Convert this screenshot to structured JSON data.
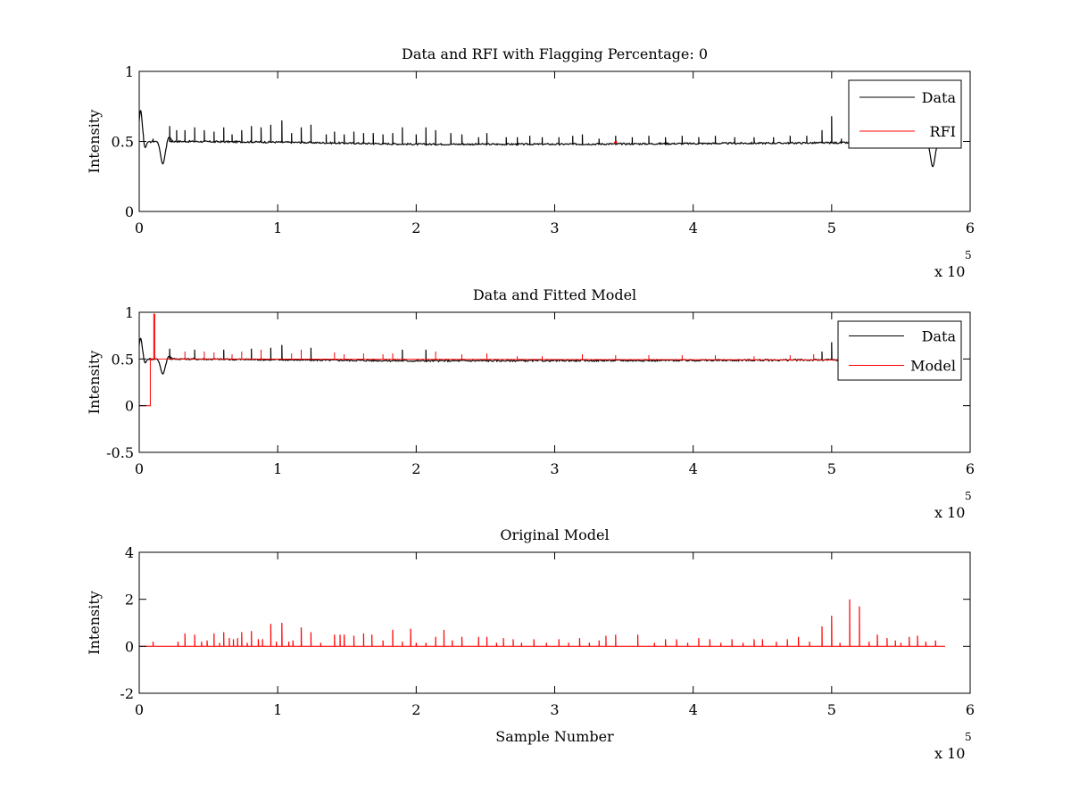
{
  "chart_data": [
    {
      "type": "line",
      "title": "Data and RFI with Flagging Percentage: 0",
      "xlabel": "",
      "ylabel": "Intensity",
      "xlim": [
        0,
        600000
      ],
      "ylim": [
        0,
        1
      ],
      "x_ticks": [
        0,
        1,
        2,
        3,
        4,
        5,
        6
      ],
      "x_tick_labels": [
        "0",
        "1",
        "2",
        "3",
        "4",
        "5",
        "6"
      ],
      "y_ticks": [
        0,
        0.5,
        1
      ],
      "y_tick_labels": [
        "0",
        "0.5",
        "1"
      ],
      "x_exponent_label": "x 10",
      "x_exponent": "5",
      "legend": {
        "placement": "top-right",
        "entries": [
          "Data",
          "RFI"
        ]
      },
      "series": [
        {
          "name": "Data",
          "color": "#000000",
          "baseline": [
            [
              0,
              0.5
            ],
            [
              5000,
              0.49
            ],
            [
              10000,
              0.5
            ],
            [
              30000,
              0.5
            ],
            [
              100000,
              0.495
            ],
            [
              200000,
              0.48
            ],
            [
              300000,
              0.48
            ],
            [
              400000,
              0.485
            ],
            [
              500000,
              0.49
            ],
            [
              560000,
              0.49
            ],
            [
              585000,
              0.49
            ]
          ],
          "dips": [
            [
              1000,
              0.72,
              2500
            ],
            [
              17000,
              0.34,
              3500
            ],
            [
              573000,
              0.32,
              3500
            ]
          ],
          "spikes": [
            [
              10000,
              0.52
            ],
            [
              22000,
              0.61
            ],
            [
              27000,
              0.58
            ],
            [
              33000,
              0.58
            ],
            [
              40000,
              0.6
            ],
            [
              47000,
              0.58
            ],
            [
              54000,
              0.57
            ],
            [
              61000,
              0.6
            ],
            [
              67000,
              0.55
            ],
            [
              74000,
              0.58
            ],
            [
              81000,
              0.61
            ],
            [
              88000,
              0.6
            ],
            [
              95000,
              0.62
            ],
            [
              103000,
              0.65
            ],
            [
              110000,
              0.56
            ],
            [
              117000,
              0.6
            ],
            [
              124000,
              0.62
            ],
            [
              135000,
              0.55
            ],
            [
              141000,
              0.57
            ],
            [
              148000,
              0.55
            ],
            [
              155000,
              0.57
            ],
            [
              162000,
              0.56
            ],
            [
              169000,
              0.56
            ],
            [
              176000,
              0.55
            ],
            [
              183000,
              0.56
            ],
            [
              190000,
              0.6
            ],
            [
              200000,
              0.55
            ],
            [
              207000,
              0.6
            ],
            [
              214000,
              0.58
            ],
            [
              225000,
              0.56
            ],
            [
              233000,
              0.55
            ],
            [
              245000,
              0.53
            ],
            [
              251000,
              0.56
            ],
            [
              265000,
              0.53
            ],
            [
              273000,
              0.53
            ],
            [
              282000,
              0.54
            ],
            [
              291000,
              0.53
            ],
            [
              303000,
              0.53
            ],
            [
              313000,
              0.54
            ],
            [
              320000,
              0.55
            ],
            [
              332000,
              0.52
            ],
            [
              344000,
              0.54
            ],
            [
              356000,
              0.53
            ],
            [
              368000,
              0.54
            ],
            [
              380000,
              0.53
            ],
            [
              392000,
              0.54
            ],
            [
              404000,
              0.53
            ],
            [
              416000,
              0.54
            ],
            [
              430000,
              0.53
            ],
            [
              444000,
              0.53
            ],
            [
              458000,
              0.53
            ],
            [
              470000,
              0.54
            ],
            [
              482000,
              0.54
            ],
            [
              493000,
              0.58
            ],
            [
              500000,
              0.68
            ],
            [
              507000,
              0.52
            ],
            [
              520000,
              0.52
            ],
            [
              540000,
              0.52
            ],
            [
              556000,
              0.52
            ]
          ]
        },
        {
          "name": "RFI",
          "color": "#ff0000",
          "points": [
            [
              343000,
              0.49
            ],
            [
              345000,
              0.5
            ]
          ]
        }
      ]
    },
    {
      "type": "line",
      "title": "Data and Fitted Model",
      "xlabel": "",
      "ylabel": "Intensity",
      "xlim": [
        0,
        600000
      ],
      "ylim": [
        -0.5,
        1
      ],
      "x_ticks": [
        0,
        1,
        2,
        3,
        4,
        5,
        6
      ],
      "x_tick_labels": [
        "0",
        "1",
        "2",
        "3",
        "4",
        "5",
        "6"
      ],
      "y_ticks": [
        -0.5,
        0,
        0.5,
        1
      ],
      "y_tick_labels": [
        "-0.5",
        "0",
        "0.5",
        "1"
      ],
      "x_exponent_label": "x 10",
      "x_exponent": "5",
      "legend": {
        "placement": "top-right",
        "entries": [
          "Data",
          "Model"
        ]
      },
      "series": [
        {
          "name": "Data",
          "color": "#000000",
          "baseline": [
            [
              0,
              0.5
            ],
            [
              30000,
              0.5
            ],
            [
              200000,
              0.48
            ],
            [
              400000,
              0.485
            ],
            [
              505000,
              0.49
            ]
          ],
          "dips": [
            [
              1000,
              0.72,
              2500
            ],
            [
              17000,
              0.34,
              3500
            ]
          ],
          "spikes": [
            [
              22000,
              0.61
            ],
            [
              40000,
              0.6
            ],
            [
              61000,
              0.6
            ],
            [
              81000,
              0.61
            ],
            [
              95000,
              0.62
            ],
            [
              103000,
              0.65
            ],
            [
              124000,
              0.62
            ],
            [
              190000,
              0.6
            ],
            [
              207000,
              0.6
            ],
            [
              493000,
              0.58
            ],
            [
              500000,
              0.68
            ]
          ]
        },
        {
          "name": "Model",
          "color": "#ff0000",
          "step": [
            [
              0,
              0
            ],
            [
              8000,
              0
            ],
            [
              8000,
              0.5
            ],
            [
              10500,
              0.5
            ],
            [
              10500,
              0.98
            ],
            [
              11200,
              0.98
            ],
            [
              11200,
              0.5
            ],
            [
              505000,
              0.49
            ]
          ],
          "spikes": [
            [
              33000,
              0.58
            ],
            [
              47000,
              0.58
            ],
            [
              54000,
              0.57
            ],
            [
              67000,
              0.55
            ],
            [
              74000,
              0.58
            ],
            [
              88000,
              0.6
            ],
            [
              110000,
              0.56
            ],
            [
              117000,
              0.6
            ],
            [
              141000,
              0.57
            ],
            [
              148000,
              0.55
            ],
            [
              162000,
              0.56
            ],
            [
              176000,
              0.55
            ],
            [
              183000,
              0.56
            ],
            [
              214000,
              0.58
            ],
            [
              233000,
              0.55
            ],
            [
              251000,
              0.56
            ],
            [
              273000,
              0.53
            ],
            [
              291000,
              0.53
            ],
            [
              320000,
              0.55
            ],
            [
              344000,
              0.54
            ],
            [
              368000,
              0.54
            ],
            [
              392000,
              0.54
            ],
            [
              416000,
              0.54
            ],
            [
              444000,
              0.53
            ],
            [
              470000,
              0.54
            ],
            [
              487000,
              0.55
            ]
          ]
        }
      ]
    },
    {
      "type": "line",
      "title": "Original Model",
      "xlabel": "Sample Number",
      "ylabel": "Intensity",
      "xlim": [
        0,
        600000
      ],
      "ylim": [
        -2,
        4
      ],
      "x_ticks": [
        0,
        1,
        2,
        3,
        4,
        5,
        6
      ],
      "x_tick_labels": [
        "0",
        "1",
        "2",
        "3",
        "4",
        "5",
        "6"
      ],
      "y_ticks": [
        -2,
        0,
        2,
        4
      ],
      "y_tick_labels": [
        "-2",
        "0",
        "2",
        "4"
      ],
      "x_exponent_label": "x 10",
      "x_exponent": "5",
      "series": [
        {
          "name": "",
          "color": "#ff0000",
          "baseline": [
            [
              0,
              0
            ],
            [
              582000,
              0
            ]
          ],
          "spikes": [
            [
              10000,
              0.2
            ],
            [
              28000,
              0.2
            ],
            [
              33000,
              0.55
            ],
            [
              40000,
              0.5
            ],
            [
              45000,
              0.2
            ],
            [
              49000,
              0.25
            ],
            [
              54000,
              0.55
            ],
            [
              58000,
              0.15
            ],
            [
              61000,
              0.6
            ],
            [
              65000,
              0.35
            ],
            [
              68000,
              0.3
            ],
            [
              71000,
              0.35
            ],
            [
              74000,
              0.6
            ],
            [
              78000,
              0.15
            ],
            [
              81000,
              0.65
            ],
            [
              86000,
              0.3
            ],
            [
              89000,
              0.3
            ],
            [
              95000,
              0.95
            ],
            [
              99000,
              0.2
            ],
            [
              103000,
              1.0
            ],
            [
              108000,
              0.2
            ],
            [
              111000,
              0.25
            ],
            [
              117000,
              0.8
            ],
            [
              124000,
              0.6
            ],
            [
              131000,
              0.15
            ],
            [
              141000,
              0.5
            ],
            [
              145000,
              0.5
            ],
            [
              148000,
              0.5
            ],
            [
              155000,
              0.45
            ],
            [
              162000,
              0.55
            ],
            [
              168000,
              0.5
            ],
            [
              176000,
              0.25
            ],
            [
              183000,
              0.7
            ],
            [
              190000,
              0.2
            ],
            [
              196000,
              0.75
            ],
            [
              200000,
              0.15
            ],
            [
              207000,
              0.15
            ],
            [
              214000,
              0.4
            ],
            [
              220000,
              0.7
            ],
            [
              226000,
              0.25
            ],
            [
              233000,
              0.4
            ],
            [
              245000,
              0.4
            ],
            [
              251000,
              0.4
            ],
            [
              258000,
              0.15
            ],
            [
              263000,
              0.35
            ],
            [
              270000,
              0.3
            ],
            [
              276000,
              0.15
            ],
            [
              285000,
              0.3
            ],
            [
              294000,
              0.15
            ],
            [
              303000,
              0.3
            ],
            [
              310000,
              0.15
            ],
            [
              318000,
              0.35
            ],
            [
              325000,
              0.15
            ],
            [
              332000,
              0.25
            ],
            [
              337000,
              0.45
            ],
            [
              344000,
              0.5
            ],
            [
              360000,
              0.5
            ],
            [
              372000,
              0.15
            ],
            [
              380000,
              0.3
            ],
            [
              388000,
              0.3
            ],
            [
              396000,
              0.15
            ],
            [
              404000,
              0.35
            ],
            [
              412000,
              0.3
            ],
            [
              420000,
              0.15
            ],
            [
              428000,
              0.3
            ],
            [
              436000,
              0.15
            ],
            [
              444000,
              0.3
            ],
            [
              450000,
              0.3
            ],
            [
              460000,
              0.2
            ],
            [
              468000,
              0.3
            ],
            [
              476000,
              0.4
            ],
            [
              484000,
              0.2
            ],
            [
              493000,
              0.85
            ],
            [
              500000,
              1.3
            ],
            [
              506000,
              0.15
            ],
            [
              513000,
              2.0
            ],
            [
              520000,
              1.7
            ],
            [
              527000,
              0.2
            ],
            [
              533000,
              0.5
            ],
            [
              540000,
              0.35
            ],
            [
              546000,
              0.25
            ],
            [
              550000,
              0.15
            ],
            [
              556000,
              0.4
            ],
            [
              562000,
              0.45
            ],
            [
              568000,
              0.2
            ],
            [
              575000,
              0.25
            ]
          ]
        }
      ]
    }
  ]
}
